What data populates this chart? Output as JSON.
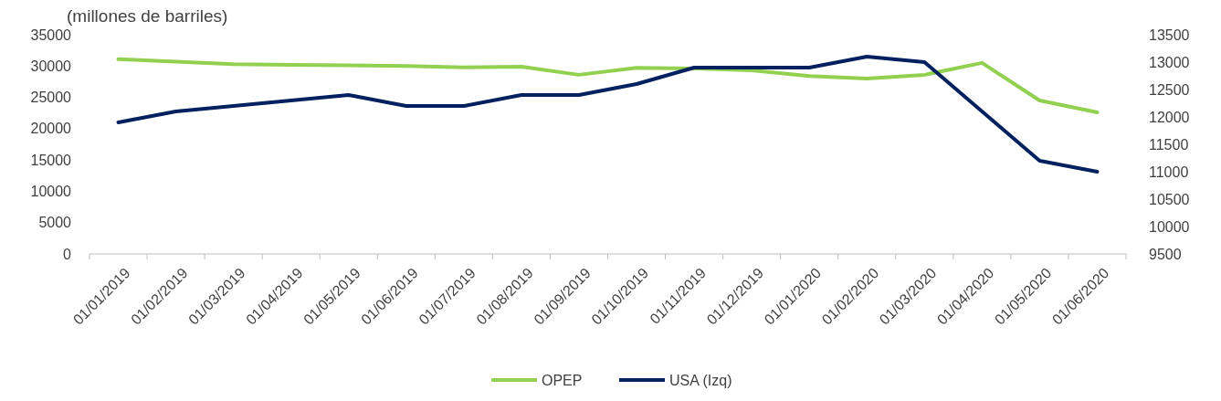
{
  "chart_data": {
    "type": "line",
    "title": "(millones de barriles)",
    "categories": [
      "01/01/2019",
      "01/02/2019",
      "01/03/2019",
      "01/04/2019",
      "01/05/2019",
      "01/06/2019",
      "01/07/2019",
      "01/08/2019",
      "01/09/2019",
      "01/10/2019",
      "01/11/2019",
      "01/12/2019",
      "01/01/2020",
      "01/02/2020",
      "01/03/2020",
      "01/04/2020",
      "01/05/2020",
      "01/06/2020"
    ],
    "series": [
      {
        "name": "OPEP",
        "color": "#92d050",
        "values": [
          31100,
          30700,
          30300,
          30200,
          30100,
          30000,
          29800,
          29900,
          28600,
          29700,
          29600,
          29300,
          28400,
          28000,
          28600,
          30500,
          24500,
          22600
        ]
      },
      {
        "name": "USA (Izq)",
        "color": "#002060",
        "axis": "y2",
        "values": [
          11900,
          12100,
          12200,
          12300,
          12400,
          12200,
          12200,
          12400,
          12400,
          12600,
          12900,
          12900,
          12900,
          13100,
          13000,
          12100,
          11200,
          11000
        ]
      }
    ],
    "ylim": [
      0,
      35000
    ],
    "yticks": [
      0,
      5000,
      10000,
      15000,
      20000,
      25000,
      30000,
      35000
    ],
    "y2lim": [
      9500,
      13500
    ],
    "y2ticks": [
      9500,
      10000,
      10500,
      11000,
      11500,
      12000,
      12500,
      13000,
      13500
    ],
    "grid": false,
    "legend": "bottom",
    "line_style": "solid",
    "marker": "none"
  }
}
